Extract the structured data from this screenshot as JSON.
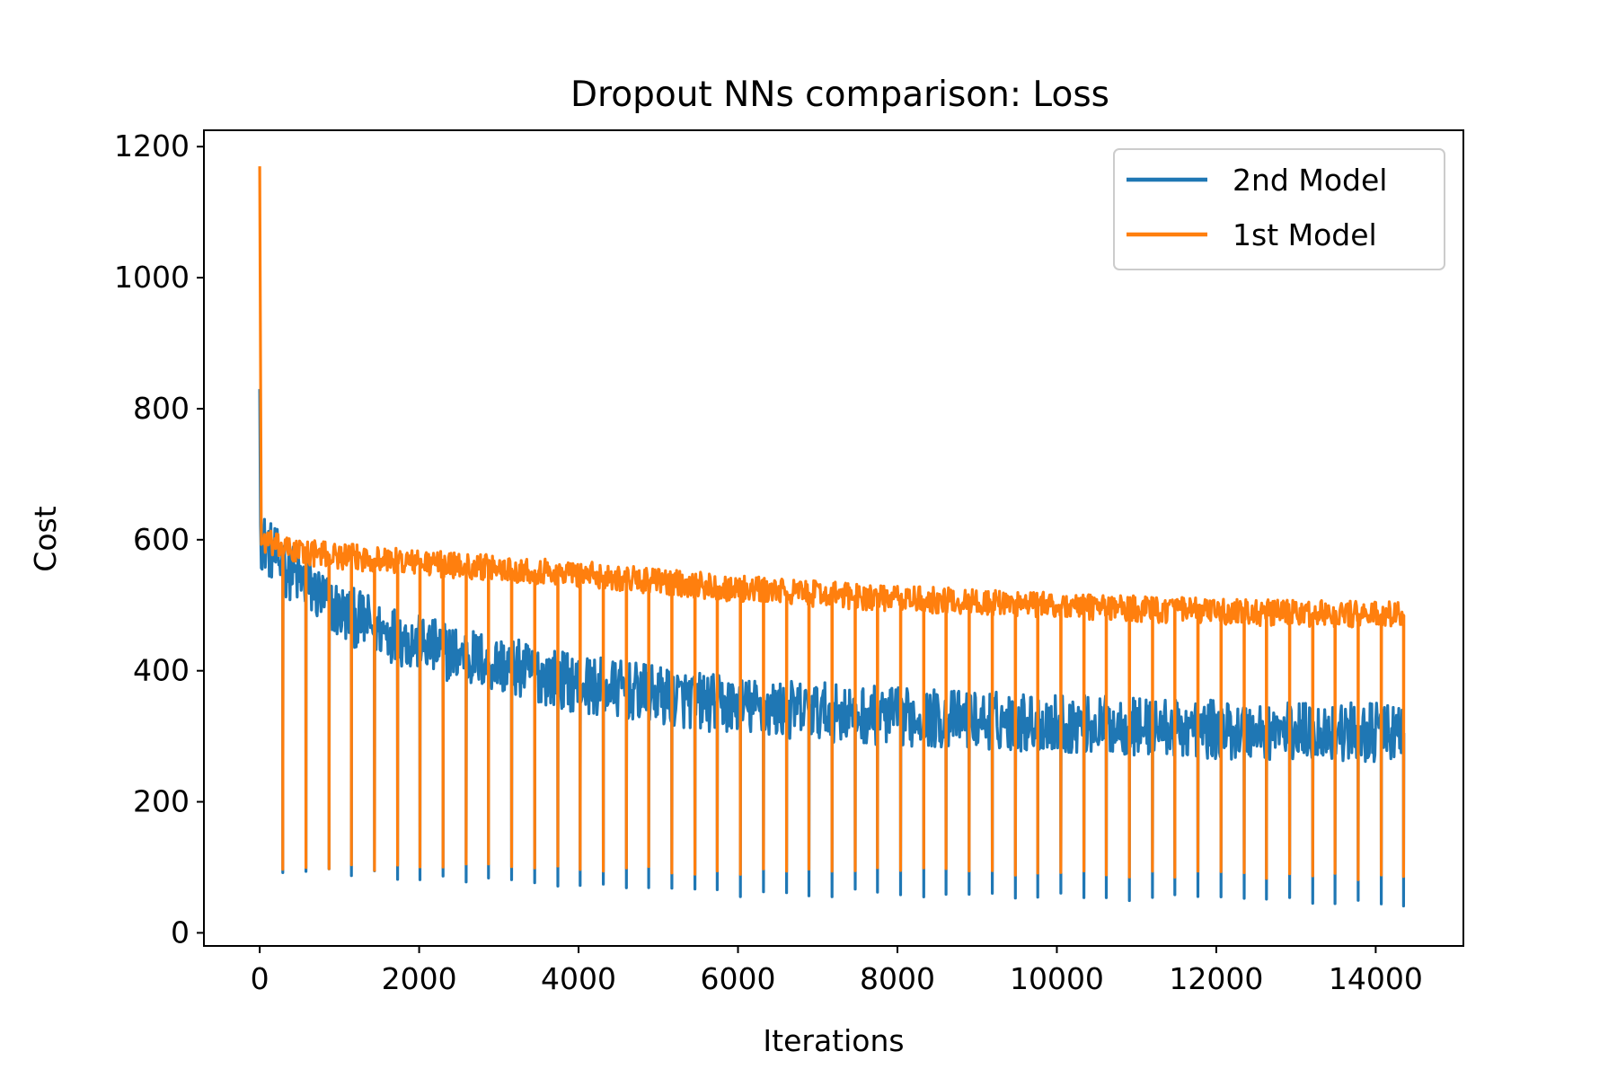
{
  "chart_data": {
    "type": "line",
    "title": "Dropout NNs comparison: Loss",
    "xlabel": "Iterations",
    "ylabel": "Cost",
    "xlim": [
      -700,
      15100
    ],
    "ylim": [
      -20,
      1225
    ],
    "xticks": [
      0,
      2000,
      4000,
      6000,
      8000,
      10000,
      12000,
      14000
    ],
    "yticks": [
      0,
      200,
      400,
      600,
      800,
      1000,
      1200
    ],
    "grid": false,
    "legend_placement": "top-right",
    "epoch_length": 287,
    "max_iteration": 14350,
    "series": [
      {
        "name": "2nd Model",
        "color": "#1f77b4",
        "start_value": 830,
        "plateau": [
          [
            20,
            600
          ],
          [
            300,
            560
          ],
          [
            1000,
            490
          ],
          [
            2000,
            440
          ],
          [
            4000,
            380
          ],
          [
            6000,
            345
          ],
          [
            8000,
            330
          ],
          [
            10000,
            320
          ],
          [
            12000,
            310
          ],
          [
            14350,
            305
          ]
        ],
        "band_halfwidth": 45,
        "dip_minima": [
          [
            287,
            90
          ],
          [
            2000,
            80
          ],
          [
            4000,
            65
          ],
          [
            6000,
            55
          ],
          [
            8000,
            55
          ],
          [
            10000,
            50
          ],
          [
            12000,
            45
          ],
          [
            14350,
            40
          ]
        ]
      },
      {
        "name": "1st Model",
        "color": "#ff7f0e",
        "start_value": 1170,
        "plateau": [
          [
            20,
            600
          ],
          [
            300,
            585
          ],
          [
            1000,
            575
          ],
          [
            2000,
            565
          ],
          [
            4000,
            548
          ],
          [
            6000,
            525
          ],
          [
            8000,
            510
          ],
          [
            10000,
            500
          ],
          [
            12000,
            490
          ],
          [
            14350,
            485
          ]
        ],
        "band_halfwidth": 20,
        "dip_minima": [
          [
            287,
            95
          ],
          [
            2000,
            95
          ],
          [
            4000,
            92
          ],
          [
            6000,
            88
          ],
          [
            8000,
            88
          ],
          [
            10000,
            85
          ],
          [
            12000,
            82
          ],
          [
            14350,
            78
          ]
        ]
      }
    ]
  }
}
